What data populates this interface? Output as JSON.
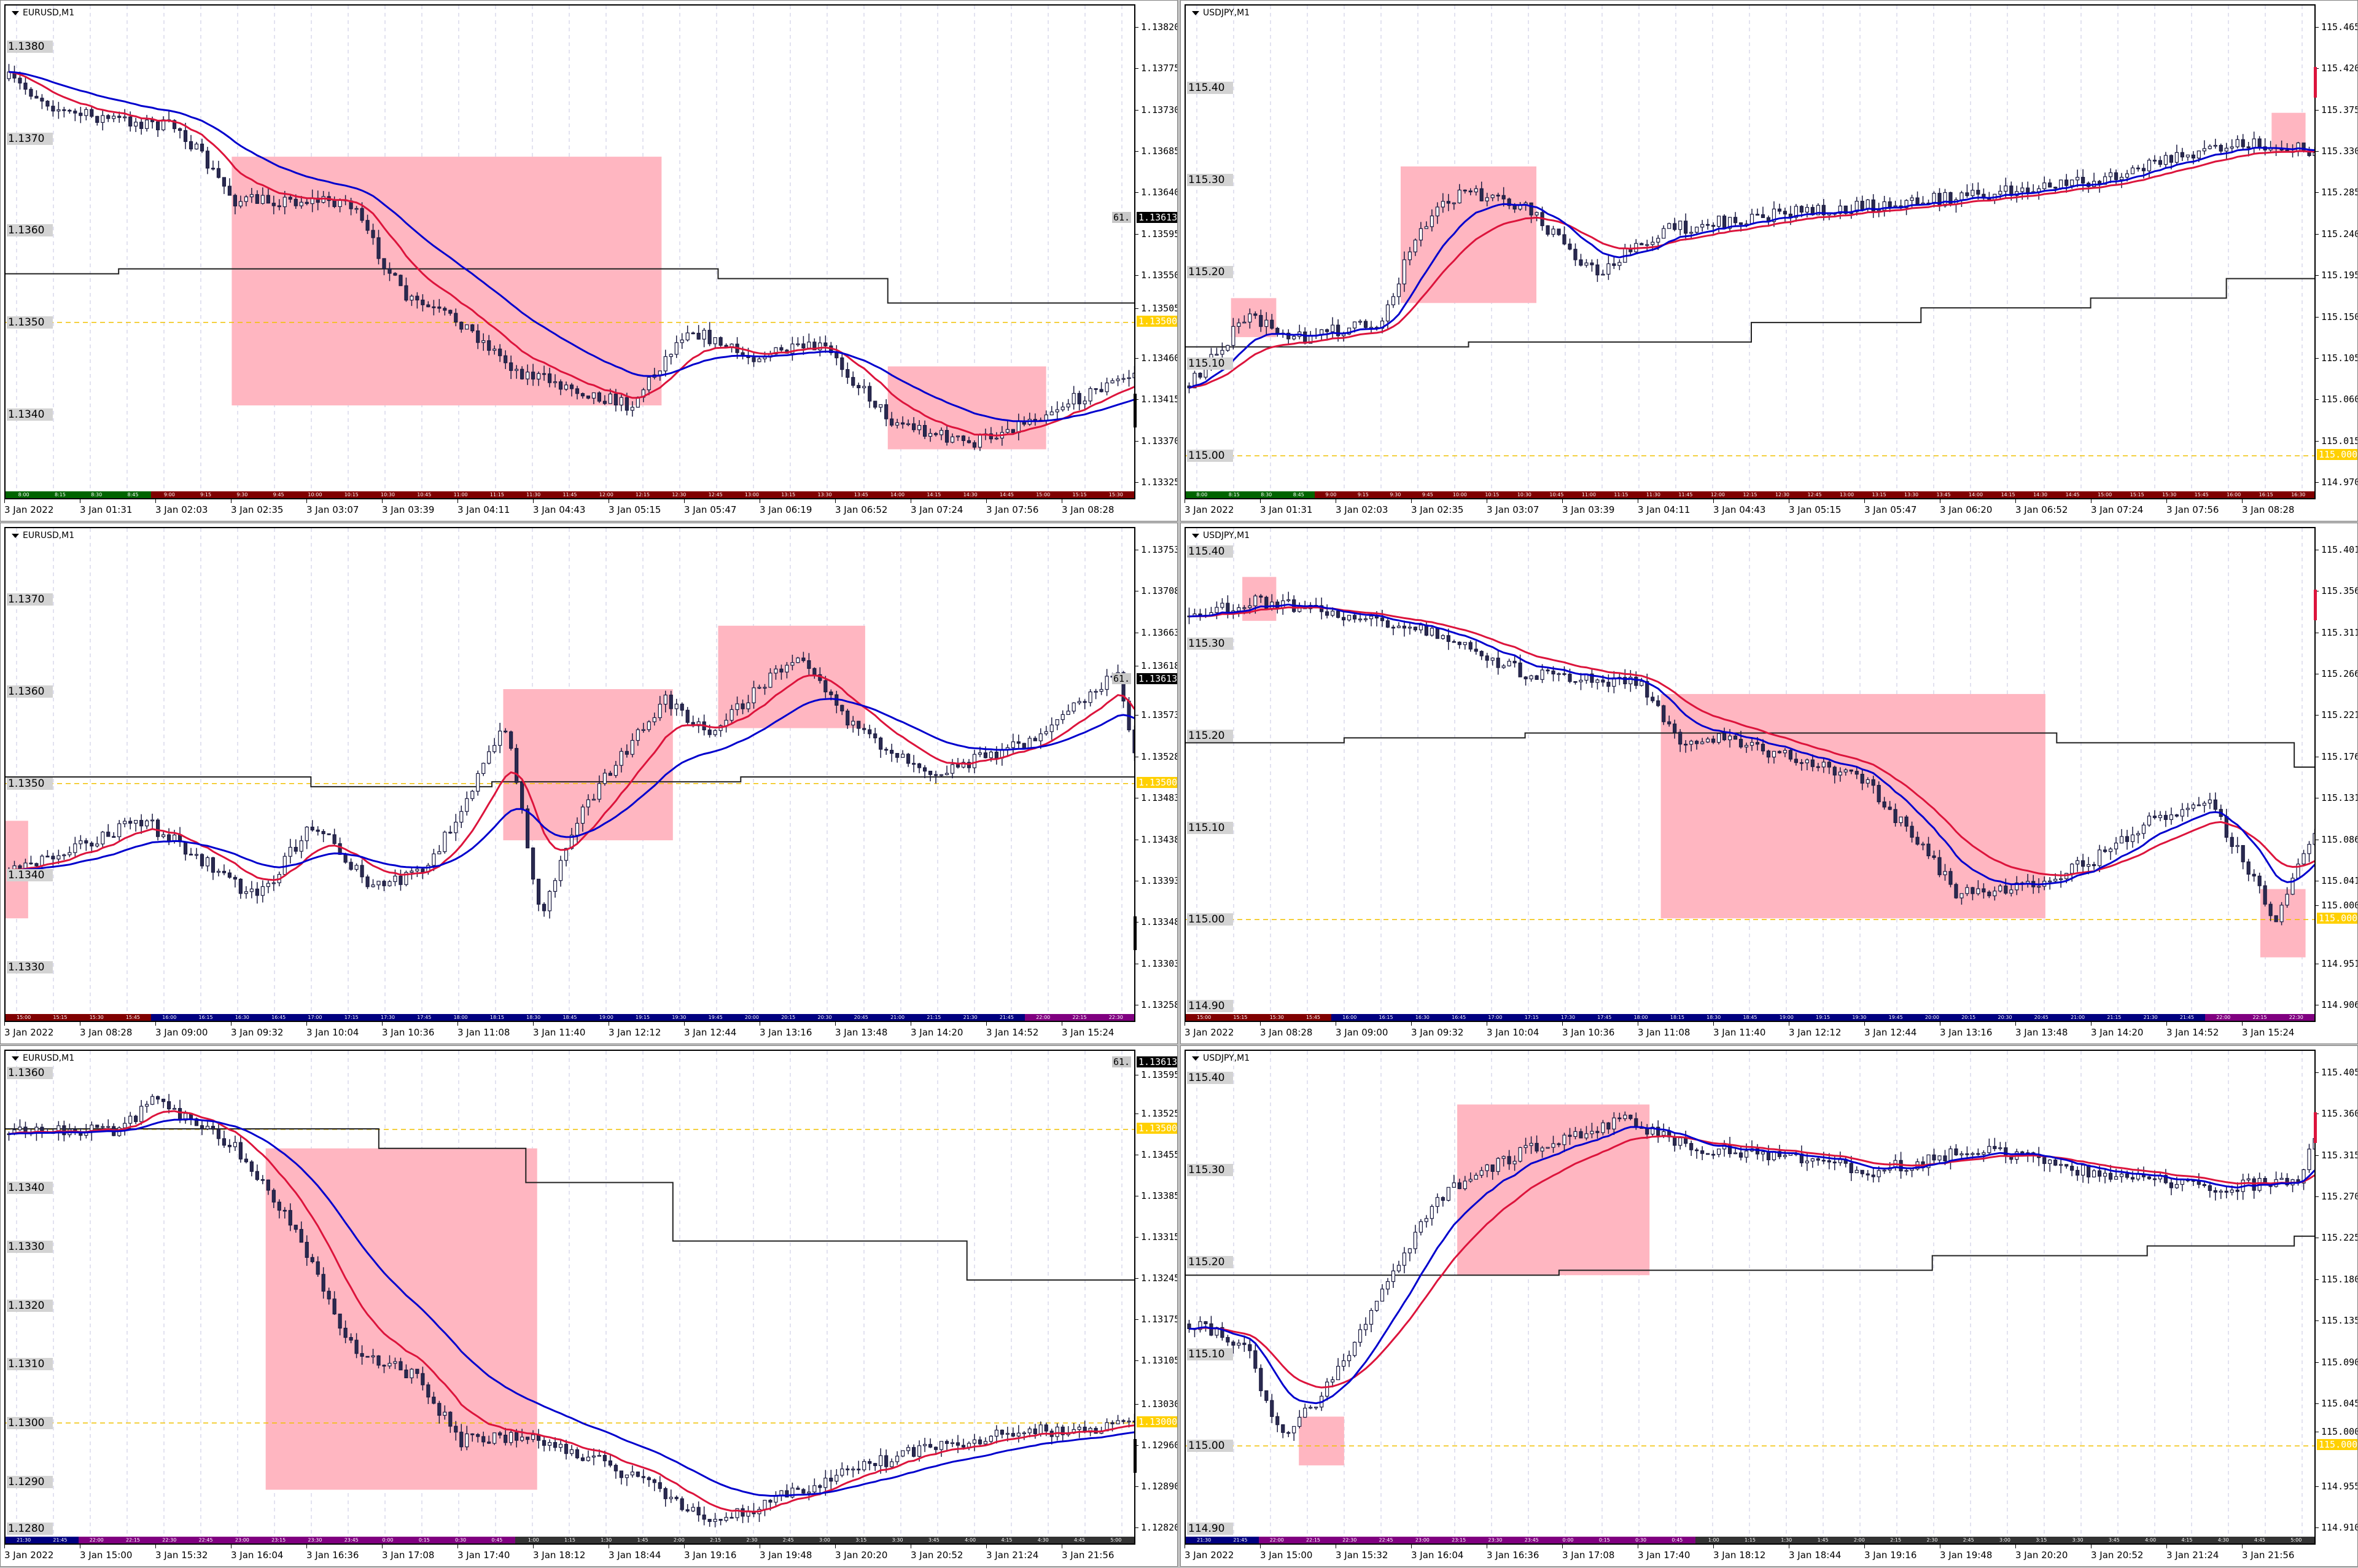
{
  "colors": {
    "bull_green": "#006400",
    "bear_red": "#800000",
    "navy": "#000080",
    "purple": "#800080",
    "dark": "#333333",
    "pink_box": "#ffb6c1",
    "ma_red": "#dc143c",
    "ma_blue": "#0000cd",
    "level_yellow": "#ffd000"
  },
  "charts": [
    {
      "title": "EURUSD,M1",
      "price_axis": [
        "1.13820",
        "1.13775",
        "1.13730",
        "1.13685",
        "1.13640",
        "1.13595",
        "1.13550",
        "1.13505",
        "1.13460",
        "1.13415",
        "1.13370",
        "1.13325"
      ],
      "round_levels": [
        "1.1380",
        "1.1370",
        "1.1360",
        "1.1350",
        "1.1340"
      ],
      "bid_label": "1.13613",
      "bid_tag": "61.",
      "level_labels": [
        "1.13500"
      ],
      "time_axis": [
        "3 Jan 2022",
        "3 Jan 01:31",
        "3 Jan 02:03",
        "3 Jan 02:35",
        "3 Jan 03:07",
        "3 Jan 03:39",
        "3 Jan 04:11",
        "3 Jan 04:43",
        "3 Jan 05:15",
        "3 Jan 05:47",
        "3 Jan 06:19",
        "3 Jan 06:52",
        "3 Jan 07:24",
        "3 Jan 07:56",
        "3 Jan 08:28"
      ],
      "session_bar": [
        {
          "color": "#006400",
          "labels": [
            "8:00",
            "8:15",
            "8:30",
            "8:45"
          ]
        },
        {
          "color": "#800000",
          "labels": [
            "9:00",
            "9:15",
            "9:30",
            "9:45",
            "10:00",
            "10:15",
            "10:30",
            "10:45",
            "11:00",
            "11:15",
            "11:30",
            "11:45",
            "12:00",
            "12:15",
            "12:30",
            "12:45",
            "13:00",
            "13:15",
            "13:30",
            "13:45",
            "14:00",
            "14:15",
            "14:30",
            "14:45",
            "15:00",
            "15:15",
            "15:30"
          ]
        }
      ]
    },
    {
      "title": "USDJPY,M1",
      "price_axis": [
        "115.465",
        "115.420",
        "115.375",
        "115.330",
        "115.285",
        "115.240",
        "115.195",
        "115.150",
        "115.105",
        "115.060",
        "115.015",
        "114.970"
      ],
      "round_levels": [
        "115.40",
        "115.30",
        "115.20",
        "115.10",
        "115.00"
      ],
      "level_labels": [
        "115.000"
      ],
      "time_axis": [
        "3 Jan 2022",
        "3 Jan 01:31",
        "3 Jan 02:03",
        "3 Jan 02:35",
        "3 Jan 03:07",
        "3 Jan 03:39",
        "3 Jan 04:11",
        "3 Jan 04:43",
        "3 Jan 05:15",
        "3 Jan 05:47",
        "3 Jan 06:20",
        "3 Jan 06:52",
        "3 Jan 07:24",
        "3 Jan 07:56",
        "3 Jan 08:28"
      ],
      "session_bar": [
        {
          "color": "#006400",
          "labels": [
            "8:00",
            "8:15",
            "8:30",
            "8:45"
          ]
        },
        {
          "color": "#800000",
          "labels": [
            "9:00",
            "9:15",
            "9:30",
            "9:45",
            "10:00",
            "10:15",
            "10:30",
            "10:45",
            "11:00",
            "11:15",
            "11:30",
            "11:45",
            "12:00",
            "12:15",
            "12:30",
            "12:45",
            "13:00",
            "13:15",
            "13:30",
            "13:45",
            "14:00",
            "14:15",
            "14:30",
            "14:45",
            "15:00",
            "15:15",
            "15:30",
            "15:45",
            "16:00",
            "16:15",
            "16:30"
          ]
        }
      ]
    },
    {
      "title": "EURUSD,M1",
      "price_axis": [
        "1.13753",
        "1.13708",
        "1.13663",
        "1.13618",
        "1.13573",
        "1.13528",
        "1.13483",
        "1.13438",
        "1.13393",
        "1.13348",
        "1.13303",
        "1.13258"
      ],
      "round_levels": [
        "1.1370",
        "1.1360",
        "1.1350",
        "1.1340",
        "1.1330"
      ],
      "bid_label": "1.13613",
      "bid_tag": "61.",
      "level_labels": [
        "1.13500"
      ],
      "time_axis": [
        "3 Jan 2022",
        "3 Jan 08:28",
        "3 Jan 09:00",
        "3 Jan 09:32",
        "3 Jan 10:04",
        "3 Jan 10:36",
        "3 Jan 11:08",
        "3 Jan 11:40",
        "3 Jan 12:12",
        "3 Jan 12:44",
        "3 Jan 13:16",
        "3 Jan 13:48",
        "3 Jan 14:20",
        "3 Jan 14:52",
        "3 Jan 15:24"
      ],
      "session_bar": [
        {
          "color": "#800000",
          "labels": [
            "15:00",
            "15:15",
            "15:30",
            "15:45"
          ]
        },
        {
          "color": "#000080",
          "labels": [
            "16:00",
            "16:15",
            "16:30",
            "16:45",
            "17:00",
            "17:15",
            "17:30",
            "17:45",
            "18:00",
            "18:15",
            "18:30",
            "18:45",
            "19:00",
            "19:15",
            "19:30",
            "19:45",
            "20:00",
            "20:15",
            "20:30",
            "20:45",
            "21:00",
            "21:15",
            "21:30",
            "21:45"
          ]
        },
        {
          "color": "#800080",
          "labels": [
            "22:00",
            "22:15",
            "22:30"
          ]
        }
      ]
    },
    {
      "title": "USDJPY,M1",
      "price_axis": [
        "115.401",
        "115.356",
        "115.311",
        "115.266",
        "115.221",
        "115.176",
        "115.131",
        "115.086",
        "115.041",
        "115.000",
        "114.951",
        "114.906"
      ],
      "round_levels": [
        "115.40",
        "115.30",
        "115.20",
        "115.10",
        "115.00",
        "114.90"
      ],
      "level_labels": [
        "115.000"
      ],
      "time_axis": [
        "3 Jan 2022",
        "3 Jan 08:28",
        "3 Jan 09:00",
        "3 Jan 09:32",
        "3 Jan 10:04",
        "3 Jan 10:36",
        "3 Jan 11:08",
        "3 Jan 11:40",
        "3 Jan 12:12",
        "3 Jan 12:44",
        "3 Jan 13:16",
        "3 Jan 13:48",
        "3 Jan 14:20",
        "3 Jan 14:52",
        "3 Jan 15:24"
      ],
      "session_bar": [
        {
          "color": "#800000",
          "labels": [
            "15:00",
            "15:15",
            "15:30",
            "15:45"
          ]
        },
        {
          "color": "#000080",
          "labels": [
            "16:00",
            "16:15",
            "16:30",
            "16:45",
            "17:00",
            "17:15",
            "17:30",
            "17:45",
            "18:00",
            "18:15",
            "18:30",
            "18:45",
            "19:00",
            "19:15",
            "19:30",
            "19:45",
            "20:00",
            "20:15",
            "20:30",
            "20:45",
            "21:00",
            "21:15",
            "21:30",
            "21:45"
          ]
        },
        {
          "color": "#800080",
          "labels": [
            "22:00",
            "22:15",
            "22:30"
          ]
        }
      ]
    },
    {
      "title": "EURUSD,M1",
      "price_axis": [
        "1.13595",
        "1.13525",
        "1.13455",
        "1.13385",
        "1.13315",
        "1.13245",
        "1.13175",
        "1.13105",
        "1.13030",
        "1.12960",
        "1.12890",
        "1.12820"
      ],
      "round_levels": [
        "1.1360",
        "1.1340",
        "1.1330",
        "1.1320",
        "1.1310",
        "1.1300",
        "1.1290",
        "1.1280"
      ],
      "bid_label": "1.13613",
      "bid_tag": "61.",
      "level_labels": [
        "1.13500",
        "1.13000"
      ],
      "time_axis": [
        "3 Jan 2022",
        "3 Jan 15:00",
        "3 Jan 15:32",
        "3 Jan 16:04",
        "3 Jan 16:36",
        "3 Jan 17:08",
        "3 Jan 17:40",
        "3 Jan 18:12",
        "3 Jan 18:44",
        "3 Jan 19:16",
        "3 Jan 19:48",
        "3 Jan 20:20",
        "3 Jan 20:52",
        "3 Jan 21:24",
        "3 Jan 21:56"
      ],
      "session_bar": [
        {
          "color": "#000080",
          "labels": [
            "21:30",
            "21:45"
          ]
        },
        {
          "color": "#800080",
          "labels": [
            "22:00",
            "22:15",
            "22:30",
            "22:45",
            "23:00",
            "23:15",
            "23:30",
            "23:45",
            "0:00",
            "0:15",
            "0:30",
            "0:45"
          ]
        },
        {
          "color": "#333333",
          "labels": [
            "1:00",
            "1:15",
            "1:30",
            "1:45",
            "2:00",
            "2:15",
            "2:30",
            "2:45",
            "3:00",
            "3:15",
            "3:30",
            "3:45",
            "4:00",
            "4:15",
            "4:30",
            "4:45",
            "5:00"
          ]
        }
      ]
    },
    {
      "title": "USDJPY,M1",
      "price_axis": [
        "115.405",
        "115.360",
        "115.315",
        "115.270",
        "115.225",
        "115.180",
        "115.135",
        "115.090",
        "115.045",
        "115.000",
        "114.955",
        "114.910"
      ],
      "round_levels": [
        "115.40",
        "115.30",
        "115.20",
        "115.10",
        "115.00",
        "114.90"
      ],
      "level_labels": [
        "115.000"
      ],
      "time_axis": [
        "3 Jan 2022",
        "3 Jan 15:00",
        "3 Jan 15:32",
        "3 Jan 16:04",
        "3 Jan 16:36",
        "3 Jan 17:08",
        "3 Jan 17:40",
        "3 Jan 18:12",
        "3 Jan 18:44",
        "3 Jan 19:16",
        "3 Jan 19:48",
        "3 Jan 20:20",
        "3 Jan 20:52",
        "3 Jan 21:24",
        "3 Jan 21:56"
      ],
      "session_bar": [
        {
          "color": "#000080",
          "labels": [
            "21:30",
            "21:45"
          ]
        },
        {
          "color": "#800080",
          "labels": [
            "22:00",
            "22:15",
            "22:30",
            "22:45",
            "23:00",
            "23:15",
            "23:30",
            "23:45",
            "0:00",
            "0:15",
            "0:30",
            "0:45"
          ]
        },
        {
          "color": "#333333",
          "labels": [
            "1:00",
            "1:15",
            "1:30",
            "1:45",
            "2:00",
            "2:15",
            "2:30",
            "2:45",
            "3:00",
            "3:15",
            "3:30",
            "3:45",
            "4:00",
            "4:15",
            "4:30",
            "4:45",
            "5:00"
          ]
        }
      ]
    }
  ]
}
